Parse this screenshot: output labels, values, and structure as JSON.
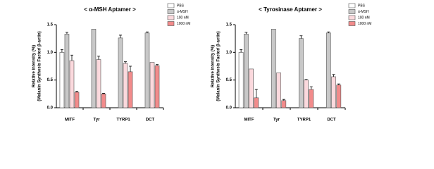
{
  "chart_data": [
    {
      "type": "bar",
      "title": "< α-MSH Aptamer >",
      "y_label": [
        "Relative intensity (%)",
        "(Melanin Synthesis Factor/ β-actin)"
      ],
      "categories": [
        "MITF",
        "Tyr",
        "TYRP1",
        "DCT"
      ],
      "ylim": [
        0,
        1.5
      ],
      "yticks": [
        {
          "value": 0,
          "label": "0.0"
        },
        0.5,
        {
          "value": 1,
          "label": "1.0"
        },
        1.5
      ],
      "legend": "upper right",
      "series": [
        {
          "name": "PBS",
          "color": "#ffffff",
          "values": [
            1.0,
            null,
            null,
            null
          ],
          "errors": [
            0.05,
            null,
            null,
            null
          ]
        },
        {
          "name": "α-MSH",
          "color": "#c8c8c8",
          "values": [
            1.33,
            1.42,
            1.26,
            1.35
          ],
          "errors": [
            0.03,
            null,
            0.05,
            0.02
          ]
        },
        {
          "name": "100 nM",
          "color": "#fbd9dd",
          "values": [
            0.85,
            0.87,
            0.8,
            0.82
          ],
          "errors": [
            0.1,
            0.06,
            0.03,
            null
          ]
        },
        {
          "name": "1000 nM",
          "color": "#f28b8b",
          "values": [
            0.28,
            0.25,
            0.65,
            0.76
          ],
          "errors": [
            0.02,
            0.01,
            0.1,
            0.02
          ]
        }
      ]
    },
    {
      "type": "bar",
      "title": "< Tyrosinase Aptamer >",
      "y_label": [
        "Relative intensity (%)",
        "(Melanin Synthesis Factor/ β-actin)"
      ],
      "categories": [
        "MITF",
        "Tyr",
        "TYRP1",
        "DCT"
      ],
      "ylim": [
        0,
        1.5
      ],
      "yticks": [
        {
          "value": 0,
          "label": "0.0"
        },
        0.5,
        {
          "value": 1,
          "label": "1.0"
        },
        1.5
      ],
      "legend": "upper right",
      "series": [
        {
          "name": "PBS",
          "color": "#ffffff",
          "values": [
            1.0,
            null,
            null,
            null
          ],
          "errors": [
            0.05,
            null,
            null,
            null
          ]
        },
        {
          "name": "α-MSH",
          "color": "#c8c8c8",
          "values": [
            1.33,
            1.42,
            1.25,
            1.35
          ],
          "errors": [
            0.03,
            null,
            0.05,
            0.02
          ]
        },
        {
          "name": "100 nM",
          "color": "#fbd9dd",
          "values": [
            0.7,
            0.63,
            0.5,
            0.56
          ],
          "errors": [
            null,
            null,
            0.01,
            0.04
          ]
        },
        {
          "name": "1000 nM",
          "color": "#f28b8b",
          "values": [
            0.18,
            0.13,
            0.33,
            0.41
          ],
          "errors": [
            0.15,
            0.02,
            0.05,
            0.02
          ]
        }
      ]
    }
  ]
}
